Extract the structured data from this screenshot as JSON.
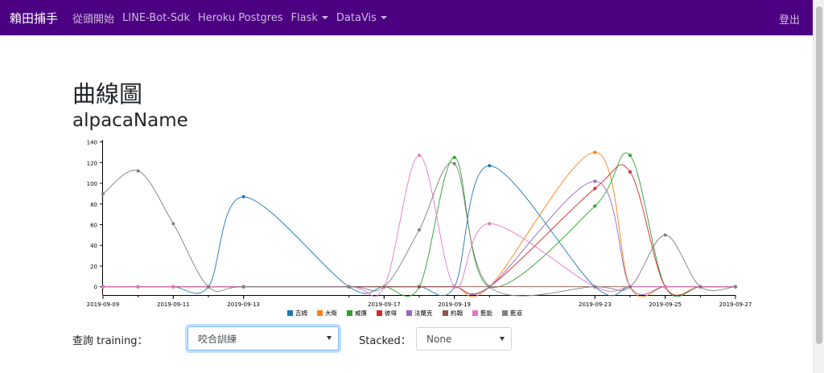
{
  "navbar": {
    "brand": "賴田捕手",
    "items": [
      "從頭開始",
      "LINE-Bot-Sdk",
      "Heroku Postgres"
    ],
    "dropdowns": [
      "Flask",
      "DataVis"
    ],
    "logout": "登出",
    "bg_color": "#4b0082"
  },
  "page": {
    "title": "曲線圖",
    "subtitle": "alpacaName"
  },
  "controls": {
    "training_label": "查詢 training：",
    "training_value": "咬合訓練",
    "stacked_label": "Stacked：",
    "stacked_value": "None"
  },
  "chart_data": {
    "type": "line",
    "x": [
      "2019-09-09",
      "2019-09-10",
      "2019-09-11",
      "2019-09-12",
      "2019-09-13",
      "2019-09-16",
      "2019-09-17",
      "2019-09-18",
      "2019-09-19",
      "2019-09-20",
      "2019-09-23",
      "2019-09-24",
      "2019-09-25",
      "2019-09-26",
      "2019-09-27"
    ],
    "x_ticks": [
      "2019-09-09",
      "2019-09-11",
      "2019-09-13",
      "2019-09-17",
      "2019-09-19",
      "2019-09-23",
      "2019-09-25",
      "2019-09-27"
    ],
    "y_ticks": [
      0,
      20,
      40,
      60,
      80,
      100,
      120,
      140
    ],
    "ylim": [
      -8,
      142
    ],
    "series": [
      {
        "name": "吉姆",
        "color": "#1f77b4",
        "values": [
          0,
          0,
          0,
          0,
          87,
          0,
          0,
          0,
          0,
          117,
          0,
          0,
          0,
          0,
          0
        ]
      },
      {
        "name": "大衛",
        "color": "#ff7f0e",
        "values": [
          0,
          0,
          0,
          0,
          0,
          0,
          0,
          0,
          0,
          0,
          130,
          0,
          0,
          0,
          0
        ]
      },
      {
        "name": "威廉",
        "color": "#2ca02c",
        "values": [
          0,
          0,
          0,
          0,
          0,
          0,
          0,
          0,
          125,
          0,
          78,
          127,
          0,
          0,
          0
        ]
      },
      {
        "name": "彼得",
        "color": "#d62728",
        "values": [
          0,
          0,
          0,
          0,
          0,
          0,
          0,
          0,
          0,
          0,
          95,
          111,
          0,
          0,
          0
        ]
      },
      {
        "name": "法蘭克",
        "color": "#9467bd",
        "values": [
          0,
          0,
          0,
          0,
          0,
          0,
          0,
          0,
          0,
          0,
          102,
          0,
          0,
          0,
          0
        ]
      },
      {
        "name": "約翰",
        "color": "#8c564b",
        "values": [
          0,
          0,
          0,
          0,
          0,
          0,
          0,
          0,
          0,
          0,
          0,
          0,
          0,
          0,
          0
        ]
      },
      {
        "name": "藍能",
        "color": "#e377c2",
        "values": [
          0,
          0,
          0,
          0,
          0,
          0,
          0,
          127,
          0,
          61,
          0,
          0,
          0,
          0,
          0
        ]
      },
      {
        "name": "藍道",
        "color": "#7f7f7f",
        "values": [
          90,
          112,
          61,
          0,
          0,
          0,
          0,
          55,
          119,
          0,
          0,
          0,
          50,
          0,
          0
        ]
      }
    ]
  }
}
